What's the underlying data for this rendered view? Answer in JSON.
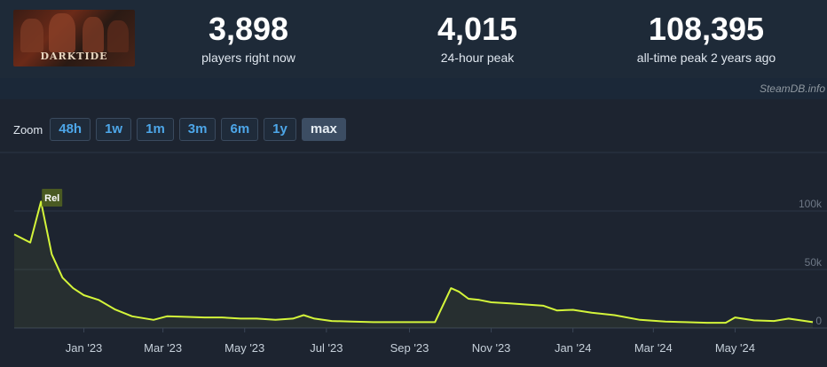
{
  "game": {
    "logo_text": "DARKTIDE"
  },
  "stats": [
    {
      "value": "3,898",
      "label": "players right now"
    },
    {
      "value": "4,015",
      "label": "24-hour peak"
    },
    {
      "value": "108,395",
      "label": "all-time peak 2 years ago"
    }
  ],
  "watermark": "SteamDB.info",
  "zoom": {
    "label": "Zoom",
    "options": [
      "48h",
      "1w",
      "1m",
      "3m",
      "6m",
      "1y",
      "max"
    ],
    "selected": "max"
  },
  "colors": {
    "line": "#d4f53a",
    "accent": "#4da6e8"
  },
  "chart_data": {
    "type": "area",
    "ylim": [
      0,
      120000
    ],
    "yticks": [
      {
        "value": 100000,
        "label": "100k"
      },
      {
        "value": 50000,
        "label": "50k"
      },
      {
        "value": 0,
        "label": "0"
      }
    ],
    "xticks": [
      {
        "date": "2023-01-01",
        "label": "Jan '23"
      },
      {
        "date": "2023-03-01",
        "label": "Mar '23"
      },
      {
        "date": "2023-05-01",
        "label": "May '23"
      },
      {
        "date": "2023-07-01",
        "label": "Jul '23"
      },
      {
        "date": "2023-09-01",
        "label": "Sep '23"
      },
      {
        "date": "2023-11-01",
        "label": "Nov '23"
      },
      {
        "date": "2024-01-01",
        "label": "Jan '24"
      },
      {
        "date": "2024-03-01",
        "label": "Mar '24"
      },
      {
        "date": "2024-05-01",
        "label": "May '24"
      }
    ],
    "x_range": [
      "2022-11-10",
      "2024-06-28"
    ],
    "annotation": {
      "date": "2022-11-30",
      "label": "Rel"
    },
    "series": [
      {
        "dates": [
          "2022-11-10",
          "2022-11-22",
          "2022-11-30",
          "2022-12-08",
          "2022-12-16",
          "2022-12-24",
          "2023-01-01",
          "2023-01-12",
          "2023-01-24",
          "2023-02-06",
          "2023-02-22",
          "2023-03-04",
          "2023-03-20",
          "2023-04-01",
          "2023-04-14",
          "2023-04-28",
          "2023-05-10",
          "2023-05-24",
          "2023-06-06",
          "2023-06-14",
          "2023-06-22",
          "2023-07-05",
          "2023-07-20",
          "2023-08-05",
          "2023-08-20",
          "2023-09-05",
          "2023-09-20",
          "2023-10-02",
          "2023-10-08",
          "2023-10-15",
          "2023-10-23",
          "2023-11-01",
          "2023-11-15",
          "2023-11-28",
          "2023-12-10",
          "2023-12-20",
          "2024-01-01",
          "2024-01-15",
          "2024-02-01",
          "2024-02-20",
          "2024-03-10",
          "2024-03-25",
          "2024-04-10",
          "2024-04-24",
          "2024-05-01",
          "2024-05-15",
          "2024-05-30",
          "2024-06-10",
          "2024-06-28"
        ],
        "values": [
          80000,
          73000,
          108000,
          63000,
          43000,
          34000,
          28000,
          24000,
          16000,
          10000,
          7000,
          10000,
          9500,
          9000,
          9000,
          8000,
          8000,
          7000,
          8000,
          11000,
          8000,
          6000,
          5500,
          5000,
          5000,
          5000,
          5000,
          34000,
          31000,
          25000,
          24000,
          22000,
          21000,
          20000,
          19000,
          15000,
          15500,
          13000,
          11000,
          7000,
          5500,
          5000,
          4500,
          4500,
          9000,
          6500,
          6000,
          8000,
          5000
        ]
      }
    ]
  }
}
